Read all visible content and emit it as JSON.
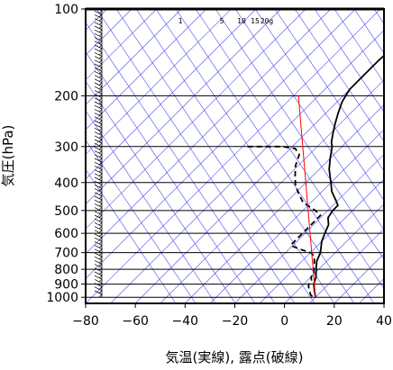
{
  "chart_data": {
    "type": "line",
    "title": "",
    "xlabel": "気温(実線), 露点(破線)",
    "ylabel": "気圧(hPa)",
    "x_unit": "°C",
    "y_scale": "log",
    "xlim": [
      -80,
      40
    ],
    "ylim": [
      1050,
      100
    ],
    "x_ticks": [
      -80,
      -60,
      -40,
      -20,
      0,
      20,
      40
    ],
    "x_tick_labels": [
      "−80",
      "−60",
      "−40",
      "−20",
      "0",
      "20",
      "40"
    ],
    "y_ticks": [
      100,
      200,
      300,
      400,
      500,
      600,
      700,
      800,
      900,
      1000
    ],
    "y_tick_labels": [
      "100",
      "200",
      "300",
      "400",
      "500",
      "600",
      "700",
      "800",
      "900",
      "1000"
    ],
    "skew": true,
    "grid": true,
    "mixing_ratio_labels": [
      "1",
      "5",
      "10",
      "15",
      "20g"
    ],
    "series": [
      {
        "style": "solid",
        "color": "#000000",
        "points": [
          {
            "p": 100,
            "t": -57
          },
          {
            "p": 110,
            "t": -59
          },
          {
            "p": 120,
            "t": -58
          },
          {
            "p": 130,
            "t": -59
          },
          {
            "p": 150,
            "t": -60
          },
          {
            "p": 170,
            "t": -60
          },
          {
            "p": 190,
            "t": -60
          },
          {
            "p": 200,
            "t": -59
          },
          {
            "p": 210,
            "t": -58
          },
          {
            "p": 230,
            "t": -55
          },
          {
            "p": 250,
            "t": -52
          },
          {
            "p": 270,
            "t": -49
          },
          {
            "p": 290,
            "t": -46
          },
          {
            "p": 300,
            "t": -44
          },
          {
            "p": 330,
            "t": -40
          },
          {
            "p": 360,
            "t": -36
          },
          {
            "p": 400,
            "t": -30
          },
          {
            "p": 430,
            "t": -26
          },
          {
            "p": 460,
            "t": -21
          },
          {
            "p": 480,
            "t": -18
          },
          {
            "p": 500,
            "t": -18
          },
          {
            "p": 530,
            "t": -17
          },
          {
            "p": 560,
            "t": -14
          },
          {
            "p": 600,
            "t": -12
          },
          {
            "p": 640,
            "t": -10
          },
          {
            "p": 700,
            "t": -6
          },
          {
            "p": 750,
            "t": -4
          },
          {
            "p": 800,
            "t": -1
          },
          {
            "p": 850,
            "t": 2
          },
          {
            "p": 900,
            "t": 4
          },
          {
            "p": 950,
            "t": 7
          },
          {
            "p": 1000,
            "t": 10
          }
        ]
      },
      {
        "style": "dashed",
        "color": "#000000",
        "points": [
          {
            "p": 300,
            "t": -78
          },
          {
            "p": 300,
            "t": -64
          },
          {
            "p": 305,
            "t": -58
          },
          {
            "p": 320,
            "t": -54
          },
          {
            "p": 350,
            "t": -51
          },
          {
            "p": 380,
            "t": -47
          },
          {
            "p": 410,
            "t": -43
          },
          {
            "p": 440,
            "t": -38
          },
          {
            "p": 470,
            "t": -33
          },
          {
            "p": 500,
            "t": -25
          },
          {
            "p": 520,
            "t": -21
          },
          {
            "p": 560,
            "t": -21
          },
          {
            "p": 600,
            "t": -21
          },
          {
            "p": 640,
            "t": -21
          },
          {
            "p": 660,
            "t": -21
          },
          {
            "p": 680,
            "t": -16
          },
          {
            "p": 700,
            "t": -10
          },
          {
            "p": 720,
            "t": -7
          },
          {
            "p": 750,
            "t": -5
          },
          {
            "p": 780,
            "t": -3
          },
          {
            "p": 800,
            "t": -2
          },
          {
            "p": 830,
            "t": 0
          },
          {
            "p": 850,
            "t": 0
          },
          {
            "p": 880,
            "t": 2
          },
          {
            "p": 900,
            "t": 2
          },
          {
            "p": 920,
            "t": 3
          },
          {
            "p": 950,
            "t": 5
          },
          {
            "p": 980,
            "t": 7
          },
          {
            "p": 1000,
            "t": 9
          }
        ]
      },
      {
        "style": "solid",
        "color": "#ff0000",
        "points": [
          {
            "p": 200,
            "t": -78
          },
          {
            "p": 1000,
            "t": 10
          }
        ]
      }
    ]
  }
}
